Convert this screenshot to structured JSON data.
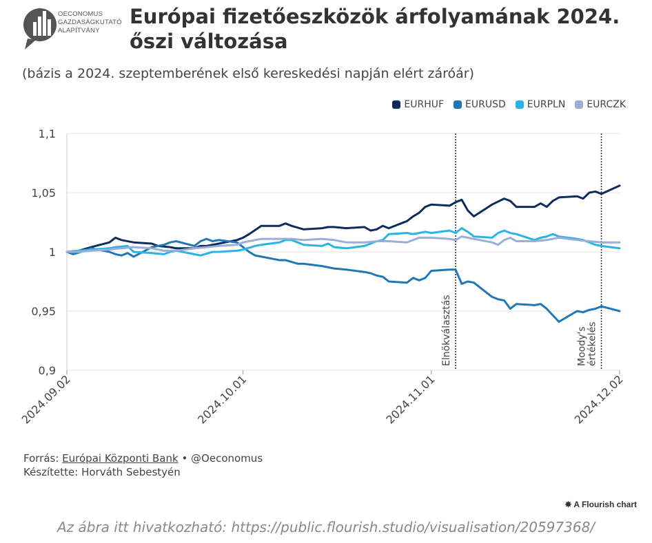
{
  "logo": {
    "text_line1": "OECONOMUS",
    "text_line2": "GAZDASÁGKUTATÓ",
    "text_line3": "ALAPÍTVÁNY",
    "color": "#555555"
  },
  "header": {
    "title": "Európai fizetőeszközök árfolyamának 2024. őszi változása",
    "subtitle": "(bázis a 2024. szeptemberének első kereskedési napján elért záróár)"
  },
  "legend": [
    {
      "label": "EURHUF",
      "color": "#0d2b5e"
    },
    {
      "label": "EURUSD",
      "color": "#1f77b4"
    },
    {
      "label": "EURPLN",
      "color": "#29b4e6"
    },
    {
      "label": "EURCZK",
      "color": "#9aaed8"
    }
  ],
  "chart_data": {
    "type": "line",
    "x_type": "date",
    "x_start": "2024-09-02",
    "x_end": "2024-12-02",
    "ylim": [
      0.9,
      1.1
    ],
    "yticks": [
      "1,1",
      "1,05",
      "1",
      "0,95",
      "0,9"
    ],
    "ytick_values": [
      1.1,
      1.05,
      1.0,
      0.95,
      0.9
    ],
    "xticks": [
      "2024.09.02",
      "2024.10.01",
      "2024.11.01",
      "2024.12.02"
    ],
    "xtick_values": [
      "2024-09-02",
      "2024-10-01",
      "2024-11-01",
      "2024-12-02"
    ],
    "grid": true,
    "legend_position": "top-right",
    "annotations": [
      {
        "date": "2024-11-05",
        "label": "Elnökválasztás"
      },
      {
        "date": "2024-11-29",
        "label": "Moody's értékelés"
      }
    ],
    "series": [
      {
        "name": "EURHUF",
        "color": "#0d2b5e",
        "points": [
          [
            "2024-09-02",
            1.0
          ],
          [
            "2024-09-04",
            1.001
          ],
          [
            "2024-09-06",
            1.004
          ],
          [
            "2024-09-09",
            1.008
          ],
          [
            "2024-09-10",
            1.012
          ],
          [
            "2024-09-11",
            1.01
          ],
          [
            "2024-09-13",
            1.008
          ],
          [
            "2024-09-16",
            1.007
          ],
          [
            "2024-09-17",
            1.005
          ],
          [
            "2024-09-19",
            1.004
          ],
          [
            "2024-09-20",
            1.003
          ],
          [
            "2024-09-23",
            1.003
          ],
          [
            "2024-09-24",
            1.005
          ],
          [
            "2024-09-25",
            1.005
          ],
          [
            "2024-09-27",
            1.007
          ],
          [
            "2024-09-30",
            1.01
          ],
          [
            "2024-10-01",
            1.012
          ],
          [
            "2024-10-02",
            1.015
          ],
          [
            "2024-10-04",
            1.022
          ],
          [
            "2024-10-07",
            1.022
          ],
          [
            "2024-10-08",
            1.024
          ],
          [
            "2024-10-09",
            1.022
          ],
          [
            "2024-10-11",
            1.019
          ],
          [
            "2024-10-14",
            1.02
          ],
          [
            "2024-10-15",
            1.021
          ],
          [
            "2024-10-16",
            1.021
          ],
          [
            "2024-10-18",
            1.02
          ],
          [
            "2024-10-21",
            1.021
          ],
          [
            "2024-10-22",
            1.018
          ],
          [
            "2024-10-23",
            1.019
          ],
          [
            "2024-10-24",
            1.022
          ],
          [
            "2024-10-25",
            1.02
          ],
          [
            "2024-10-27",
            1.024
          ],
          [
            "2024-10-28",
            1.026
          ],
          [
            "2024-10-29",
            1.03
          ],
          [
            "2024-10-30",
            1.033
          ],
          [
            "2024-10-31",
            1.038
          ],
          [
            "2024-11-01",
            1.04
          ],
          [
            "2024-11-04",
            1.039
          ],
          [
            "2024-11-05",
            1.042
          ],
          [
            "2024-11-06",
            1.044
          ],
          [
            "2024-11-07",
            1.035
          ],
          [
            "2024-11-08",
            1.03
          ],
          [
            "2024-11-11",
            1.04
          ],
          [
            "2024-11-13",
            1.045
          ],
          [
            "2024-11-14",
            1.043
          ],
          [
            "2024-11-15",
            1.038
          ],
          [
            "2024-11-18",
            1.038
          ],
          [
            "2024-11-19",
            1.041
          ],
          [
            "2024-11-20",
            1.038
          ],
          [
            "2024-11-21",
            1.043
          ],
          [
            "2024-11-22",
            1.046
          ],
          [
            "2024-11-25",
            1.047
          ],
          [
            "2024-11-26",
            1.045
          ],
          [
            "2024-11-27",
            1.05
          ],
          [
            "2024-11-28",
            1.051
          ],
          [
            "2024-11-29",
            1.049
          ],
          [
            "2024-12-02",
            1.056
          ]
        ]
      },
      {
        "name": "EURUSD",
        "color": "#1f77b4",
        "points": [
          [
            "2024-09-02",
            1.0
          ],
          [
            "2024-09-03",
            0.998
          ],
          [
            "2024-09-05",
            1.001
          ],
          [
            "2024-09-06",
            1.003
          ],
          [
            "2024-09-09",
            1.0
          ],
          [
            "2024-09-10",
            0.998
          ],
          [
            "2024-09-11",
            0.997
          ],
          [
            "2024-09-12",
            0.999
          ],
          [
            "2024-09-13",
            0.996
          ],
          [
            "2024-09-16",
            1.004
          ],
          [
            "2024-09-17",
            1.005
          ],
          [
            "2024-09-18",
            1.006
          ],
          [
            "2024-09-19",
            1.008
          ],
          [
            "2024-09-20",
            1.009
          ],
          [
            "2024-09-23",
            1.005
          ],
          [
            "2024-09-24",
            1.009
          ],
          [
            "2024-09-25",
            1.011
          ],
          [
            "2024-09-26",
            1.009
          ],
          [
            "2024-09-27",
            1.01
          ],
          [
            "2024-09-30",
            1.008
          ],
          [
            "2024-10-01",
            1.004
          ],
          [
            "2024-10-02",
            1.0
          ],
          [
            "2024-10-03",
            0.997
          ],
          [
            "2024-10-04",
            0.996
          ],
          [
            "2024-10-07",
            0.993
          ],
          [
            "2024-10-08",
            0.993
          ],
          [
            "2024-10-10",
            0.99
          ],
          [
            "2024-10-11",
            0.99
          ],
          [
            "2024-10-14",
            0.988
          ],
          [
            "2024-10-16",
            0.986
          ],
          [
            "2024-10-18",
            0.985
          ],
          [
            "2024-10-21",
            0.983
          ],
          [
            "2024-10-22",
            0.982
          ],
          [
            "2024-10-23",
            0.98
          ],
          [
            "2024-10-24",
            0.979
          ],
          [
            "2024-10-25",
            0.975
          ],
          [
            "2024-10-28",
            0.974
          ],
          [
            "2024-10-29",
            0.978
          ],
          [
            "2024-10-30",
            0.976
          ],
          [
            "2024-10-31",
            0.978
          ],
          [
            "2024-11-01",
            0.984
          ],
          [
            "2024-11-04",
            0.985
          ],
          [
            "2024-11-05",
            0.985
          ],
          [
            "2024-11-06",
            0.973
          ],
          [
            "2024-11-07",
            0.975
          ],
          [
            "2024-11-08",
            0.974
          ],
          [
            "2024-11-11",
            0.962
          ],
          [
            "2024-11-12",
            0.96
          ],
          [
            "2024-11-13",
            0.959
          ],
          [
            "2024-11-14",
            0.952
          ],
          [
            "2024-11-15",
            0.956
          ],
          [
            "2024-11-18",
            0.955
          ],
          [
            "2024-11-19",
            0.956
          ],
          [
            "2024-11-20",
            0.952
          ],
          [
            "2024-11-22",
            0.941
          ],
          [
            "2024-11-25",
            0.95
          ],
          [
            "2024-11-26",
            0.949
          ],
          [
            "2024-11-27",
            0.951
          ],
          [
            "2024-11-28",
            0.952
          ],
          [
            "2024-11-29",
            0.954
          ],
          [
            "2024-12-02",
            0.95
          ]
        ]
      },
      {
        "name": "EURPLN",
        "color": "#29b4e6",
        "points": [
          [
            "2024-09-02",
            1.0
          ],
          [
            "2024-09-04",
            1.001
          ],
          [
            "2024-09-06",
            1.002
          ],
          [
            "2024-09-09",
            1.003
          ],
          [
            "2024-09-10",
            1.004
          ],
          [
            "2024-09-12",
            1.005
          ],
          [
            "2024-09-13",
            1.0
          ],
          [
            "2024-09-16",
            0.999
          ],
          [
            "2024-09-18",
            0.998
          ],
          [
            "2024-09-19",
            1.0
          ],
          [
            "2024-09-20",
            1.001
          ],
          [
            "2024-09-23",
            0.998
          ],
          [
            "2024-09-24",
            0.997
          ],
          [
            "2024-09-26",
            1.0
          ],
          [
            "2024-09-27",
            1.0
          ],
          [
            "2024-09-30",
            1.001
          ],
          [
            "2024-10-01",
            1.002
          ],
          [
            "2024-10-03",
            1.005
          ],
          [
            "2024-10-04",
            1.006
          ],
          [
            "2024-10-07",
            1.008
          ],
          [
            "2024-10-08",
            1.01
          ],
          [
            "2024-10-09",
            1.01
          ],
          [
            "2024-10-10",
            1.008
          ],
          [
            "2024-10-11",
            1.006
          ],
          [
            "2024-10-14",
            1.005
          ],
          [
            "2024-10-15",
            1.007
          ],
          [
            "2024-10-16",
            1.004
          ],
          [
            "2024-10-18",
            1.003
          ],
          [
            "2024-10-21",
            1.005
          ],
          [
            "2024-10-22",
            1.007
          ],
          [
            "2024-10-23",
            1.009
          ],
          [
            "2024-10-24",
            1.01
          ],
          [
            "2024-10-25",
            1.015
          ],
          [
            "2024-10-28",
            1.016
          ],
          [
            "2024-10-29",
            1.015
          ],
          [
            "2024-10-30",
            1.016
          ],
          [
            "2024-10-31",
            1.017
          ],
          [
            "2024-11-01",
            1.016
          ],
          [
            "2024-11-04",
            1.018
          ],
          [
            "2024-11-05",
            1.016
          ],
          [
            "2024-11-06",
            1.02
          ],
          [
            "2024-11-07",
            1.017
          ],
          [
            "2024-11-08",
            1.013
          ],
          [
            "2024-11-11",
            1.012
          ],
          [
            "2024-11-12",
            1.016
          ],
          [
            "2024-11-13",
            1.018
          ],
          [
            "2024-11-14",
            1.016
          ],
          [
            "2024-11-15",
            1.015
          ],
          [
            "2024-11-18",
            1.01
          ],
          [
            "2024-11-19",
            1.012
          ],
          [
            "2024-11-20",
            1.013
          ],
          [
            "2024-11-21",
            1.015
          ],
          [
            "2024-11-22",
            1.013
          ],
          [
            "2024-11-25",
            1.011
          ],
          [
            "2024-11-26",
            1.01
          ],
          [
            "2024-11-27",
            1.008
          ],
          [
            "2024-11-28",
            1.006
          ],
          [
            "2024-11-29",
            1.005
          ],
          [
            "2024-12-02",
            1.003
          ]
        ]
      },
      {
        "name": "EURCZK",
        "color": "#9aaed8",
        "points": [
          [
            "2024-09-02",
            1.0
          ],
          [
            "2024-09-04",
            1.0
          ],
          [
            "2024-09-06",
            1.001
          ],
          [
            "2024-09-09",
            1.002
          ],
          [
            "2024-09-11",
            1.003
          ],
          [
            "2024-09-13",
            1.004
          ],
          [
            "2024-09-16",
            1.003
          ],
          [
            "2024-09-18",
            1.001
          ],
          [
            "2024-09-20",
            1.001
          ],
          [
            "2024-09-23",
            1.003
          ],
          [
            "2024-09-25",
            1.004
          ],
          [
            "2024-09-27",
            1.005
          ],
          [
            "2024-09-30",
            1.006
          ],
          [
            "2024-10-01",
            1.008
          ],
          [
            "2024-10-03",
            1.01
          ],
          [
            "2024-10-04",
            1.011
          ],
          [
            "2024-10-07",
            1.011
          ],
          [
            "2024-10-09",
            1.011
          ],
          [
            "2024-10-11",
            1.01
          ],
          [
            "2024-10-14",
            1.011
          ],
          [
            "2024-10-16",
            1.01
          ],
          [
            "2024-10-18",
            1.008
          ],
          [
            "2024-10-21",
            1.008
          ],
          [
            "2024-10-23",
            1.009
          ],
          [
            "2024-10-25",
            1.009
          ],
          [
            "2024-10-28",
            1.008
          ],
          [
            "2024-10-30",
            1.012
          ],
          [
            "2024-11-01",
            1.012
          ],
          [
            "2024-11-04",
            1.011
          ],
          [
            "2024-11-05",
            1.01
          ],
          [
            "2024-11-06",
            1.013
          ],
          [
            "2024-11-08",
            1.011
          ],
          [
            "2024-11-11",
            1.008
          ],
          [
            "2024-11-12",
            1.006
          ],
          [
            "2024-11-13",
            1.01
          ],
          [
            "2024-11-14",
            1.012
          ],
          [
            "2024-11-15",
            1.009
          ],
          [
            "2024-11-18",
            1.009
          ],
          [
            "2024-11-20",
            1.01
          ],
          [
            "2024-11-22",
            1.012
          ],
          [
            "2024-11-25",
            1.01
          ],
          [
            "2024-11-27",
            1.009
          ],
          [
            "2024-11-29",
            1.008
          ],
          [
            "2024-12-02",
            1.008
          ]
        ]
      }
    ]
  },
  "footer": {
    "source_prefix": "Forrás: ",
    "source_link": "Európai Központi Bank",
    "source_suffix": " • @Oeconomus",
    "author": "Készítette: Horváth Sebestyén",
    "flourish": "A Flourish chart",
    "citation": "Az ábra itt hivatkozható: https://public.flourish.studio/visualisation/20597368/"
  }
}
